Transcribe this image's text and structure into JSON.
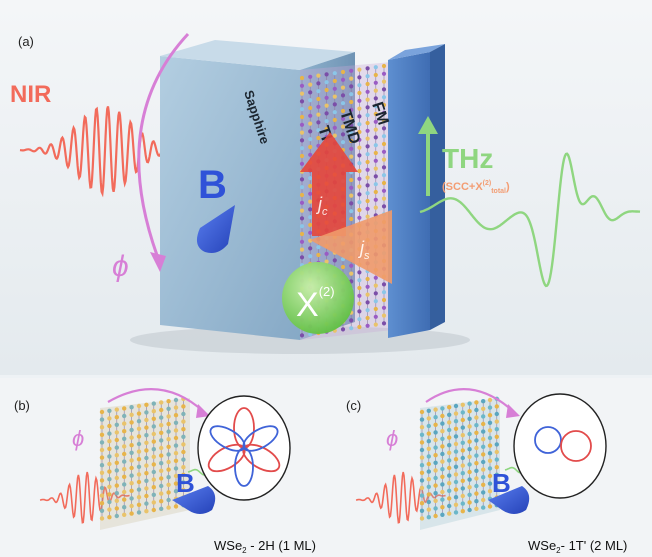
{
  "panel_a": {
    "label": "(a)",
    "nir_label": "NIR",
    "b_label": "B",
    "phi_label": "ϕ",
    "sapphire_label": "Sapphire",
    "ti_label": "TI",
    "tmd_label": "TMD",
    "fm_label": "FM",
    "thz_label": "THz",
    "thz_sub_prefix": "(SCC+",
    "thz_sub_chi": "X",
    "thz_sub_chi_sup": "(2)",
    "thz_sub_chi_subscript": "total",
    "thz_sub_suffix": ")",
    "jc_label": "j",
    "jc_sub": "c",
    "js_label": "j",
    "js_sub": "s",
    "chi_label": "X",
    "chi_sup": "(2)"
  },
  "panel_b": {
    "label": "(b)",
    "phi_label": "ϕ",
    "b_label": "B",
    "caption_prefix": "WSe",
    "caption_sub": "2",
    "caption_suffix": " - 2H (1 ML)"
  },
  "panel_c": {
    "label": "(c)",
    "phi_label": "ϕ",
    "b_label": "B",
    "caption_prefix": "WSe",
    "caption_sub": "2",
    "caption_suffix": "- 1T' (2 ML)"
  },
  "colors": {
    "nir": "#f26b5b",
    "thz": "#8fd680",
    "phi_arrow": "#d77fd6",
    "b_cone": "#3558d8",
    "polar_red": "#e24b4b",
    "polar_blue": "#3f63d8",
    "sapphire": "#a9c6dc",
    "fm": "#4f7fc2"
  }
}
